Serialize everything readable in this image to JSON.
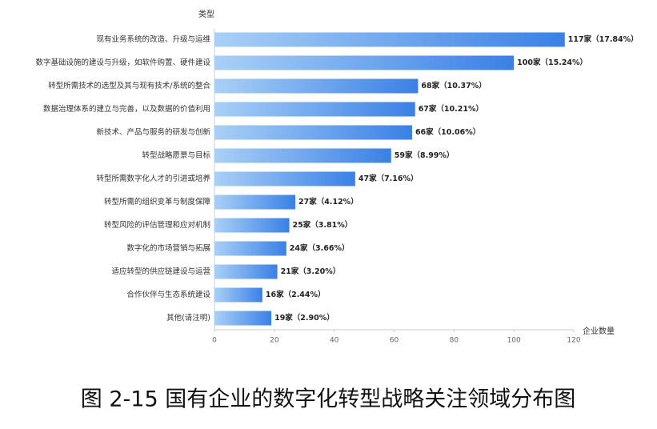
{
  "chart_data": {
    "type": "barh",
    "title": "图 2-15  国有企业的数字化转型战略关注领域分布图",
    "y_label": "类型",
    "x_label": "企业数量",
    "categories": [
      "现有业务系统的改造、升级与运维",
      "数字基础设施的建设与升级，如软件购置、硬件建设",
      "转型所需技术的选型及其与现有技术/系统的整合",
      "数据治理体系的建立与完善，以及数据的价值利用",
      "新技术、产品与服务的研发与创新",
      "转型战略愿景与目标",
      "转型所需数字化人才的引进或培养",
      "转型所需的组织变革与制度保障",
      "转型风险的评估管理和应对机制",
      "数字化的市场营销与拓展",
      "适应转型的供应链建设与运营",
      "合作伙伴与生态系统建设",
      "其他(请注明)"
    ],
    "values": [
      117,
      100,
      68,
      67,
      66,
      59,
      47,
      27,
      25,
      24,
      21,
      16,
      19
    ],
    "value_labels": [
      "117家（17.84%）",
      "100家（15.24%）",
      "68家（10.37%）",
      "67家（10.21%）",
      "66家（10.06%）",
      "59家（8.99%）",
      "47家（7.16%）",
      "27家（4.12%）",
      "25家（3.81%）",
      "24家（3.66%）",
      "21家（3.20%）",
      "16家（2.44%）",
      "19家（2.90%）"
    ],
    "color": "#3a80e6",
    "xlim": [
      0,
      120
    ],
    "xticks": [
      0,
      20,
      40,
      60,
      80,
      100,
      120
    ]
  }
}
